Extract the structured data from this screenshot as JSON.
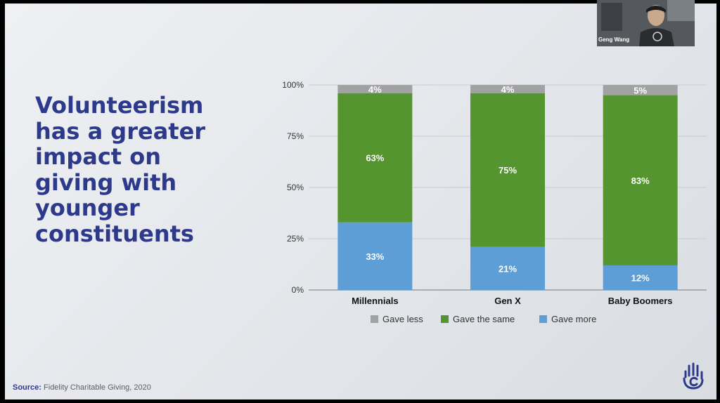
{
  "slide": {
    "headline": "Volunteerism\nhas a greater\nimpact on\ngiving with\nyounger\nconstituents",
    "source_label": "Source:",
    "source_text": "Fidelity Charitable Giving, 2020"
  },
  "webcam": {
    "participant_name": "Geng Wang"
  },
  "colors": {
    "headline": "#2d3a8c",
    "gave_less": "#a2a2a2",
    "gave_same": "#55952f",
    "gave_more": "#5d9ed7"
  },
  "icons": {
    "logo": "hand-c-logo-icon"
  },
  "chart_data": {
    "type": "bar",
    "stacked": true,
    "categories": [
      "Millennials",
      "Gen X",
      "Baby Boomers"
    ],
    "series": [
      {
        "name": "Gave more",
        "values": [
          33,
          21,
          12
        ],
        "labels": [
          "33%",
          "21%",
          "12%"
        ],
        "color": "#5d9ed7"
      },
      {
        "name": "Gave the same",
        "values": [
          63,
          75,
          83
        ],
        "labels": [
          "63%",
          "75%",
          "83%"
        ],
        "color": "#55952f"
      },
      {
        "name": "Gave less",
        "values": [
          4,
          4,
          5
        ],
        "labels": [
          "4%",
          "4%",
          "5%"
        ],
        "color": "#a2a2a2"
      }
    ],
    "ylim": [
      0,
      100
    ],
    "yticks": [
      "0%",
      "25%",
      "50%",
      "75%",
      "100%"
    ],
    "legend_order": [
      "Gave less",
      "Gave the same",
      "Gave more"
    ],
    "legend_position": "bottom",
    "grid": true
  }
}
